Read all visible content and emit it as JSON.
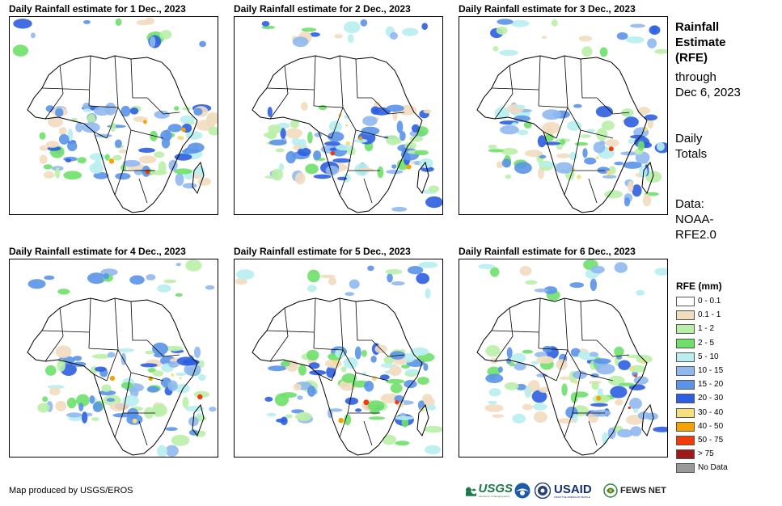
{
  "panels": [
    {
      "title": "Daily Rainfall estimate for 1 Dec., 2023"
    },
    {
      "title": "Daily Rainfall estimate for 2 Dec., 2023"
    },
    {
      "title": "Daily Rainfall estimate for 3 Dec., 2023"
    },
    {
      "title": "Daily Rainfall estimate for 4 Dec., 2023"
    },
    {
      "title": "Daily Rainfall estimate for 5 Dec., 2023"
    },
    {
      "title": "Daily Rainfall estimate for 6 Dec., 2023"
    }
  ],
  "sidebar": {
    "title_lines": [
      "Rainfall",
      "Estimate",
      "(RFE)"
    ],
    "through_lines": [
      "through",
      "Dec 6, 2023"
    ],
    "totals_lines": [
      "Daily",
      "Totals"
    ],
    "data_lines": [
      "Data:",
      "NOAA-",
      "RFE2.0"
    ]
  },
  "legend": {
    "title": "RFE (mm)",
    "items": [
      {
        "label": "0 - 0.1",
        "color": "#ffffff"
      },
      {
        "label": "0.1 - 1",
        "color": "#f2dcc0"
      },
      {
        "label": "1 - 2",
        "color": "#b9f0a8"
      },
      {
        "label": "2 - 5",
        "color": "#6ee06a"
      },
      {
        "label": "5 - 10",
        "color": "#b8eef0"
      },
      {
        "label": "10 - 15",
        "color": "#8fb8ee"
      },
      {
        "label": "15 - 20",
        "color": "#5a94e8"
      },
      {
        "label": "20 - 30",
        "color": "#2c5fe0"
      },
      {
        "label": "30 - 40",
        "color": "#f5e080"
      },
      {
        "label": "40 - 50",
        "color": "#f5a300"
      },
      {
        "label": "50 - 75",
        "color": "#f03c0a"
      },
      {
        "label": "> 75",
        "color": "#a01818"
      },
      {
        "label": "No Data",
        "color": "#999999"
      }
    ]
  },
  "footer": {
    "credit": "Map produced by USGS/EROS"
  },
  "logos": {
    "usgs": "USGS",
    "usgs_tagline": "science for a changing world",
    "usaid": "USAID",
    "usaid_tagline": "FROM THE AMERICAN PEOPLE",
    "fews": "FEWS NET"
  }
}
